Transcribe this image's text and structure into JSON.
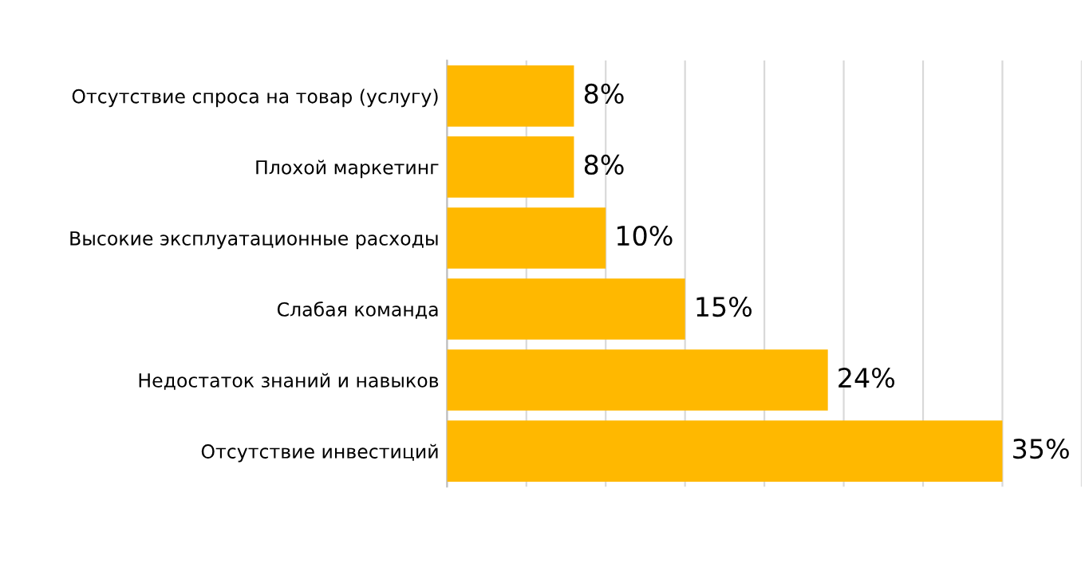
{
  "chart_data": {
    "type": "bar",
    "orientation": "horizontal",
    "categories": [
      "Отсутствие спроса на товар (услугу)",
      "Плохой маркетинг",
      "Высокие эксплуатационные расходы",
      "Слабая команда",
      "Недостаток знаний и навыков",
      "Отсутствие инвестиций"
    ],
    "values": [
      8,
      8,
      10,
      15,
      24,
      35
    ],
    "value_labels": [
      "8%",
      "8%",
      "10%",
      "15%",
      "24%",
      "35%"
    ],
    "color": "#ffb800",
    "xlim": [
      0,
      40
    ],
    "xticks": [
      {
        "value": 0,
        "label": null
      },
      {
        "value": 5,
        "label": null
      },
      {
        "value": 10,
        "label": null
      },
      {
        "value": 15,
        "label": null
      },
      {
        "value": 20,
        "label": null
      },
      {
        "value": 25,
        "label": null
      },
      {
        "value": 30,
        "label": null
      },
      {
        "value": 35,
        "label": null
      },
      {
        "value": 40,
        "label": null
      }
    ],
    "tick_labels": "y",
    "grid": "x",
    "legend": false
  }
}
